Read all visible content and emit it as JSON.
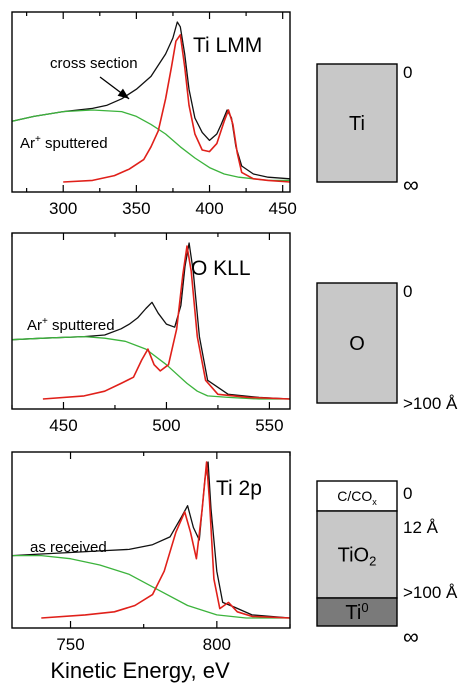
{
  "figure": {
    "xlabel": "Kinetic Energy, eV",
    "colors": {
      "measured": "#111111",
      "background": "#3cb33c",
      "corrected": "#e0201a",
      "layer_light": "#c8c8c8",
      "layer_dark": "#7a7a7a",
      "layer_top": "#ffffff"
    }
  },
  "chart_data": [
    {
      "type": "line",
      "title": "Ti LMM",
      "xlim": [
        265,
        455
      ],
      "xticks": [
        300,
        350,
        400,
        450
      ],
      "annotations": [
        "cross section",
        "Ar+ sputtered"
      ],
      "series": [
        {
          "role": "measured",
          "x": [
            265,
            280,
            300,
            320,
            330,
            340,
            350,
            360,
            370,
            375,
            378,
            380,
            383,
            386,
            390,
            395,
            400,
            405,
            408,
            412,
            415,
            418,
            422,
            430,
            440,
            455
          ],
          "y": [
            0.38,
            0.41,
            0.44,
            0.46,
            0.48,
            0.52,
            0.58,
            0.66,
            0.8,
            0.9,
            1.0,
            0.97,
            0.8,
            0.58,
            0.4,
            0.31,
            0.26,
            0.3,
            0.36,
            0.45,
            0.4,
            0.22,
            0.1,
            0.05,
            0.03,
            0.02
          ]
        },
        {
          "role": "background",
          "x": [
            265,
            280,
            300,
            320,
            340,
            350,
            360,
            370,
            380,
            390,
            400,
            410,
            420,
            430,
            440,
            455
          ],
          "y": [
            0.38,
            0.41,
            0.44,
            0.45,
            0.44,
            0.41,
            0.36,
            0.3,
            0.22,
            0.15,
            0.09,
            0.05,
            0.03,
            0.02,
            0.01,
            0.01
          ]
        },
        {
          "role": "corrected",
          "x": [
            300,
            320,
            335,
            345,
            355,
            360,
            365,
            370,
            374,
            377,
            380,
            383,
            386,
            390,
            395,
            400,
            405,
            410,
            413,
            416,
            419,
            422,
            430,
            440,
            455
          ],
          "y": [
            0.0,
            0.01,
            0.04,
            0.08,
            0.14,
            0.22,
            0.32,
            0.52,
            0.72,
            0.88,
            0.92,
            0.72,
            0.48,
            0.3,
            0.2,
            0.19,
            0.24,
            0.38,
            0.45,
            0.36,
            0.18,
            0.06,
            0.02,
            0.01,
            0.0
          ]
        }
      ],
      "depth_labels": [
        "0",
        "∞"
      ],
      "layers": [
        {
          "label": "Ti",
          "sub": "",
          "shade": "layer_light"
        }
      ]
    },
    {
      "type": "line",
      "title": "O KLL",
      "xlim": [
        425,
        560
      ],
      "xticks": [
        450,
        500,
        550
      ],
      "annotations": [
        "Ar+ sputtered"
      ],
      "series": [
        {
          "role": "measured",
          "x": [
            425,
            440,
            460,
            470,
            478,
            482,
            486,
            490,
            493,
            496,
            500,
            504,
            507,
            509,
            511,
            513,
            516,
            520,
            530,
            545,
            560
          ],
          "y": [
            0.38,
            0.39,
            0.4,
            0.41,
            0.45,
            0.48,
            0.52,
            0.58,
            0.62,
            0.55,
            0.48,
            0.46,
            0.6,
            0.85,
            1.0,
            0.82,
            0.4,
            0.12,
            0.03,
            0.01,
            0.0
          ]
        },
        {
          "role": "background",
          "x": [
            425,
            440,
            460,
            470,
            480,
            490,
            500,
            510,
            515,
            520,
            530,
            545,
            560
          ],
          "y": [
            0.38,
            0.39,
            0.4,
            0.39,
            0.37,
            0.32,
            0.22,
            0.1,
            0.05,
            0.02,
            0.01,
            0.0,
            0.0
          ]
        },
        {
          "role": "corrected",
          "x": [
            440,
            460,
            470,
            478,
            484,
            488,
            491,
            494,
            497,
            501,
            505,
            508,
            510,
            512,
            515,
            519,
            525,
            540,
            560
          ],
          "y": [
            0.0,
            0.02,
            0.05,
            0.1,
            0.14,
            0.25,
            0.32,
            0.22,
            0.18,
            0.22,
            0.45,
            0.8,
            0.98,
            0.82,
            0.4,
            0.12,
            0.03,
            0.01,
            0.0
          ]
        }
      ],
      "depth_labels": [
        "0",
        ">100 Å"
      ],
      "layers": [
        {
          "label": "O",
          "sub": "",
          "shade": "layer_light"
        }
      ]
    },
    {
      "type": "line",
      "title": "Ti 2p",
      "xlim": [
        730,
        825
      ],
      "xticks": [
        750,
        800
      ],
      "annotations": [
        "as received"
      ],
      "series": [
        {
          "role": "measured",
          "x": [
            730,
            740,
            750,
            760,
            770,
            778,
            784,
            788,
            790,
            792,
            794,
            796,
            797,
            798,
            800,
            802,
            806,
            812,
            825
          ],
          "y": [
            0.4,
            0.41,
            0.42,
            0.43,
            0.44,
            0.47,
            0.52,
            0.65,
            0.72,
            0.58,
            0.5,
            0.9,
            1.0,
            0.7,
            0.3,
            0.1,
            0.07,
            0.02,
            0.0
          ]
        },
        {
          "role": "background",
          "x": [
            730,
            740,
            750,
            760,
            770,
            780,
            790,
            800,
            810,
            825
          ],
          "y": [
            0.4,
            0.4,
            0.38,
            0.34,
            0.28,
            0.18,
            0.08,
            0.02,
            0.0,
            0.0
          ]
        },
        {
          "role": "corrected",
          "x": [
            740,
            755,
            765,
            772,
            778,
            782,
            786,
            789,
            791,
            793,
            795,
            796.5,
            797.5,
            799,
            801,
            804,
            807,
            812,
            825
          ],
          "y": [
            0.0,
            0.02,
            0.04,
            0.08,
            0.15,
            0.3,
            0.55,
            0.68,
            0.55,
            0.38,
            0.7,
            1.0,
            0.75,
            0.25,
            0.06,
            0.1,
            0.04,
            0.01,
            0.0
          ]
        }
      ],
      "depth_labels": [
        "0",
        "12 Å",
        ">100 Å",
        "∞"
      ],
      "layers": [
        {
          "label": "C/CO",
          "sub": "x",
          "shade": "layer_top"
        },
        {
          "label": "TiO",
          "sub": "2",
          "shade": "layer_light"
        },
        {
          "label": "Ti",
          "sup": "0",
          "shade": "layer_dark"
        }
      ]
    }
  ]
}
